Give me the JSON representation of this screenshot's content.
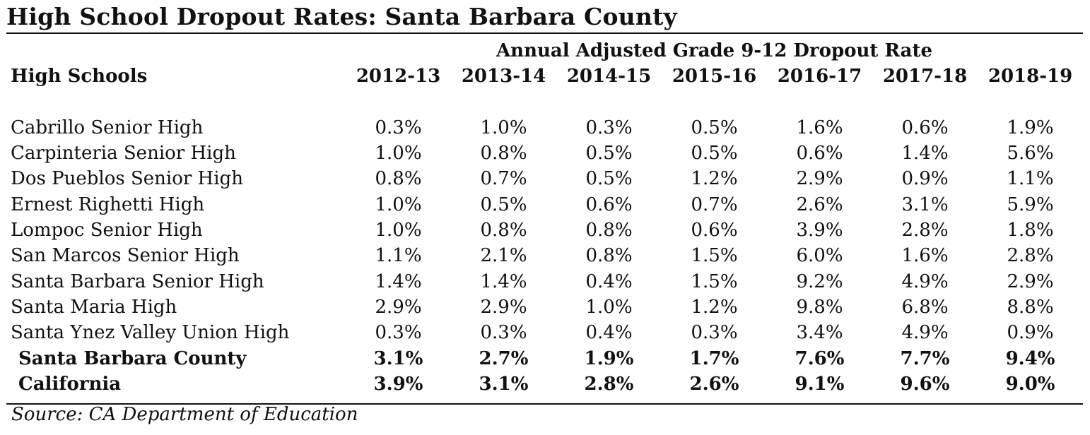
{
  "title": "High School Dropout Rates: Santa Barbara County",
  "table": {
    "super_header": "Annual Adjusted Grade 9-12 Dropout Rate",
    "row_header": "High Schools",
    "years": [
      "2012-13",
      "2013-14",
      "2014-15",
      "2015-16",
      "2016-17",
      "2017-18",
      "2018-19"
    ],
    "schools": [
      {
        "name": "Cabrillo Senior High",
        "values": [
          "0.3%",
          "1.0%",
          "0.3%",
          "0.5%",
          "1.6%",
          "0.6%",
          "1.9%"
        ]
      },
      {
        "name": "Carpinteria Senior High",
        "values": [
          "1.0%",
          "0.8%",
          "0.5%",
          "0.5%",
          "0.6%",
          "1.4%",
          "5.6%"
        ]
      },
      {
        "name": "Dos Pueblos Senior High",
        "values": [
          "0.8%",
          "0.7%",
          "0.5%",
          "1.2%",
          "2.9%",
          "0.9%",
          "1.1%"
        ]
      },
      {
        "name": "Ernest Righetti High",
        "values": [
          "1.0%",
          "0.5%",
          "0.6%",
          "0.7%",
          "2.6%",
          "3.1%",
          "5.9%"
        ]
      },
      {
        "name": "Lompoc Senior High",
        "values": [
          "1.0%",
          "0.8%",
          "0.8%",
          "0.6%",
          "3.9%",
          "2.8%",
          "1.8%"
        ]
      },
      {
        "name": "San Marcos Senior High",
        "values": [
          "1.1%",
          "2.1%",
          "0.8%",
          "1.5%",
          "6.0%",
          "1.6%",
          "2.8%"
        ]
      },
      {
        "name": "Santa Barbara Senior High",
        "values": [
          "1.4%",
          "1.4%",
          "0.4%",
          "1.5%",
          "9.2%",
          "4.9%",
          "2.9%"
        ]
      },
      {
        "name": "Santa Maria High",
        "values": [
          "2.9%",
          "2.9%",
          "1.0%",
          "1.2%",
          "9.8%",
          "6.8%",
          "8.8%"
        ]
      },
      {
        "name": "Santa Ynez Valley Union High",
        "values": [
          "0.3%",
          "0.3%",
          "0.4%",
          "0.3%",
          "3.4%",
          "4.9%",
          "0.9%"
        ]
      }
    ],
    "totals": [
      {
        "name": "Santa Barbara County",
        "values": [
          "3.1%",
          "2.7%",
          "1.9%",
          "1.7%",
          "7.6%",
          "7.7%",
          "9.4%"
        ]
      },
      {
        "name": "California",
        "values": [
          "3.9%",
          "3.1%",
          "2.8%",
          "2.6%",
          "9.1%",
          "9.6%",
          "9.0%"
        ]
      }
    ]
  },
  "source": "Source: CA Department of Education"
}
